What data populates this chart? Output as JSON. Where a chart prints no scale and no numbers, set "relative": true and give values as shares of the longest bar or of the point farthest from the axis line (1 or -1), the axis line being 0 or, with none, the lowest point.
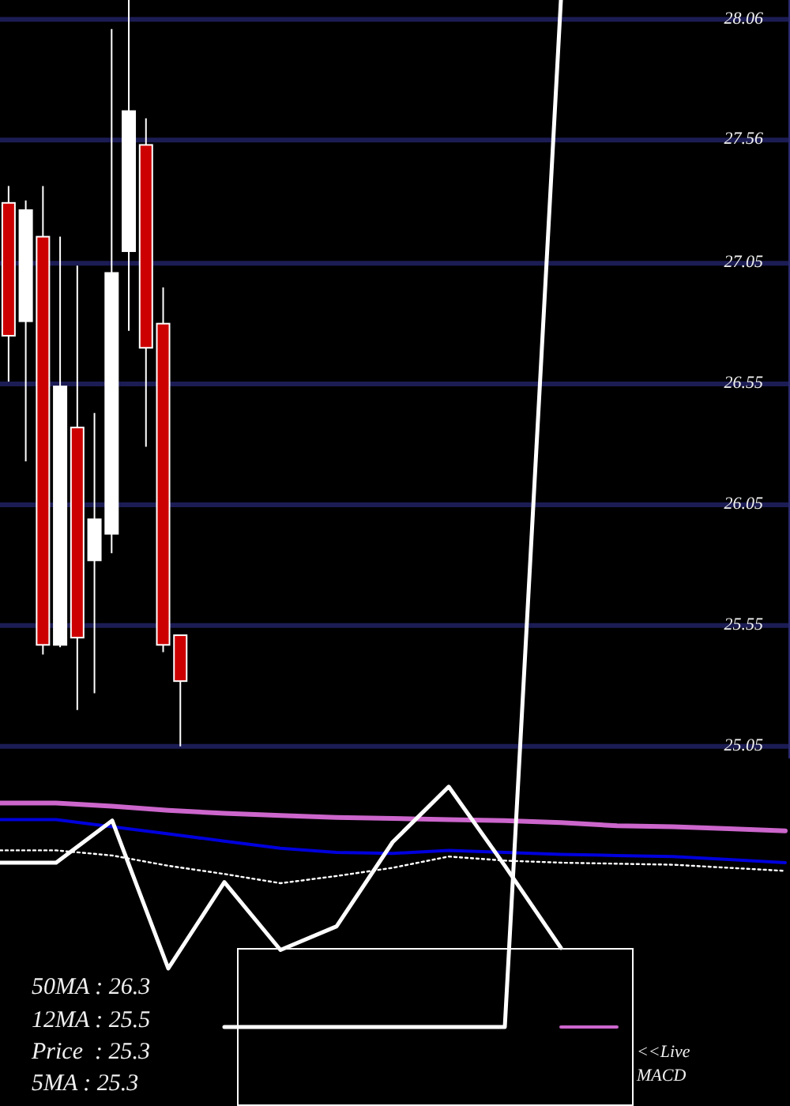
{
  "chart_data": [
    {
      "type": "candlestick",
      "categories": [
        null,
        null,
        null,
        null,
        null,
        null,
        null,
        null,
        null,
        null,
        null,
        null,
        null,
        null,
        null,
        null,
        null,
        null,
        null,
        null,
        null,
        null,
        null,
        null,
        null,
        null,
        null,
        null,
        null,
        null,
        null,
        null,
        null,
        null,
        null,
        null,
        null,
        null,
        null,
        null,
        null,
        null,
        null,
        null,
        null,
        null
      ],
      "ohlc": [
        [
          27.3,
          27.37,
          26.56,
          26.75
        ],
        [
          26.81,
          27.31,
          26.23,
          27.27
        ],
        [
          27.16,
          27.37,
          25.43,
          25.47
        ],
        [
          25.47,
          27.16,
          25.46,
          26.54
        ],
        [
          26.37,
          27.04,
          25.2,
          25.5
        ],
        [
          25.82,
          26.43,
          25.27,
          25.99
        ],
        [
          25.93,
          28.02,
          25.85,
          27.01
        ],
        [
          27.1,
          28.14,
          26.77,
          27.68
        ],
        [
          27.54,
          27.65,
          26.29,
          26.7
        ],
        [
          26.8,
          26.95,
          25.44,
          25.47
        ],
        [
          25.51,
          25.51,
          25.05,
          25.32
        ],
        null,
        null,
        null,
        null,
        null,
        null,
        null,
        null,
        null,
        null,
        null,
        null,
        null,
        null,
        null,
        null,
        null,
        null,
        null,
        null,
        null,
        null,
        null,
        null,
        null,
        null,
        null,
        null,
        null,
        null,
        null,
        null,
        null,
        null,
        null
      ],
      "colors": [
        "#cc0000",
        "#ffffff",
        "#cc0000",
        "#ffffff",
        "#cc0000",
        "#ffffff",
        "#ffffff",
        "#ffffff",
        "#cc0000",
        "#cc0000",
        "#cc0000",
        null,
        null,
        null,
        null,
        null,
        null,
        null,
        null,
        null,
        null,
        null,
        null,
        null,
        null,
        null,
        null,
        null,
        null,
        null,
        null,
        null,
        null,
        null,
        null,
        null,
        null,
        null,
        null,
        null,
        null,
        null,
        null,
        null,
        null,
        null
      ],
      "ylim": [
        25.0,
        28.14
      ],
      "yticks": [
        25.05,
        25.55,
        26.05,
        26.55,
        27.05,
        27.56,
        28.06
      ],
      "grid": "y"
    },
    {
      "type": "line",
      "relative": true,
      "categories": [
        null,
        null,
        null,
        null,
        null,
        null,
        null,
        null,
        null,
        null,
        null,
        null,
        null,
        null,
        null
      ],
      "series": [
        {
          "color": "#cc66cc",
          "values": [
            0.218,
            0.218,
            0.215,
            0.211,
            0.208,
            0.206,
            0.204,
            0.203,
            0.202,
            0.201,
            0.199,
            0.196,
            0.195,
            0.193,
            0.191
          ]
        },
        {
          "color": "#0000dd",
          "values": [
            0.202,
            0.202,
            0.195,
            0.188,
            0.181,
            0.174,
            0.17,
            0.169,
            0.172,
            0.17,
            0.168,
            0.167,
            0.166,
            0.163,
            0.16
          ]
        },
        {
          "color": "#ffffff",
          "line_style": "dotted",
          "values": [
            0.172,
            0.172,
            0.167,
            0.157,
            0.149,
            0.14,
            0.147,
            0.155,
            0.166,
            0.162,
            0.16,
            0.159,
            0.158,
            0.155,
            0.152
          ]
        },
        {
          "color": "#ffffff",
          "values": [
            0.16,
            0.16,
            0.201,
            0.057,
            0.141,
            0.075,
            0.098,
            0.18,
            0.234,
            0.157,
            0.077,
            null,
            null,
            null,
            null
          ]
        },
        {
          "color": "#cc66cc",
          "values": [
            null,
            null,
            null,
            null,
            null,
            null,
            null,
            null,
            null,
            null,
            0,
            0,
            null,
            null,
            null
          ]
        },
        {
          "color": "#ffffff",
          "values": [
            null,
            null,
            null,
            null,
            0,
            0,
            0,
            0,
            0,
            0,
            1,
            null,
            null,
            null,
            null
          ]
        }
      ],
      "annotations": [
        "50MA : 26.3",
        "12MA : 25.5",
        "Price  : 25.3",
        "5MA : 25.3",
        "<<Live MACD"
      ]
    }
  ]
}
